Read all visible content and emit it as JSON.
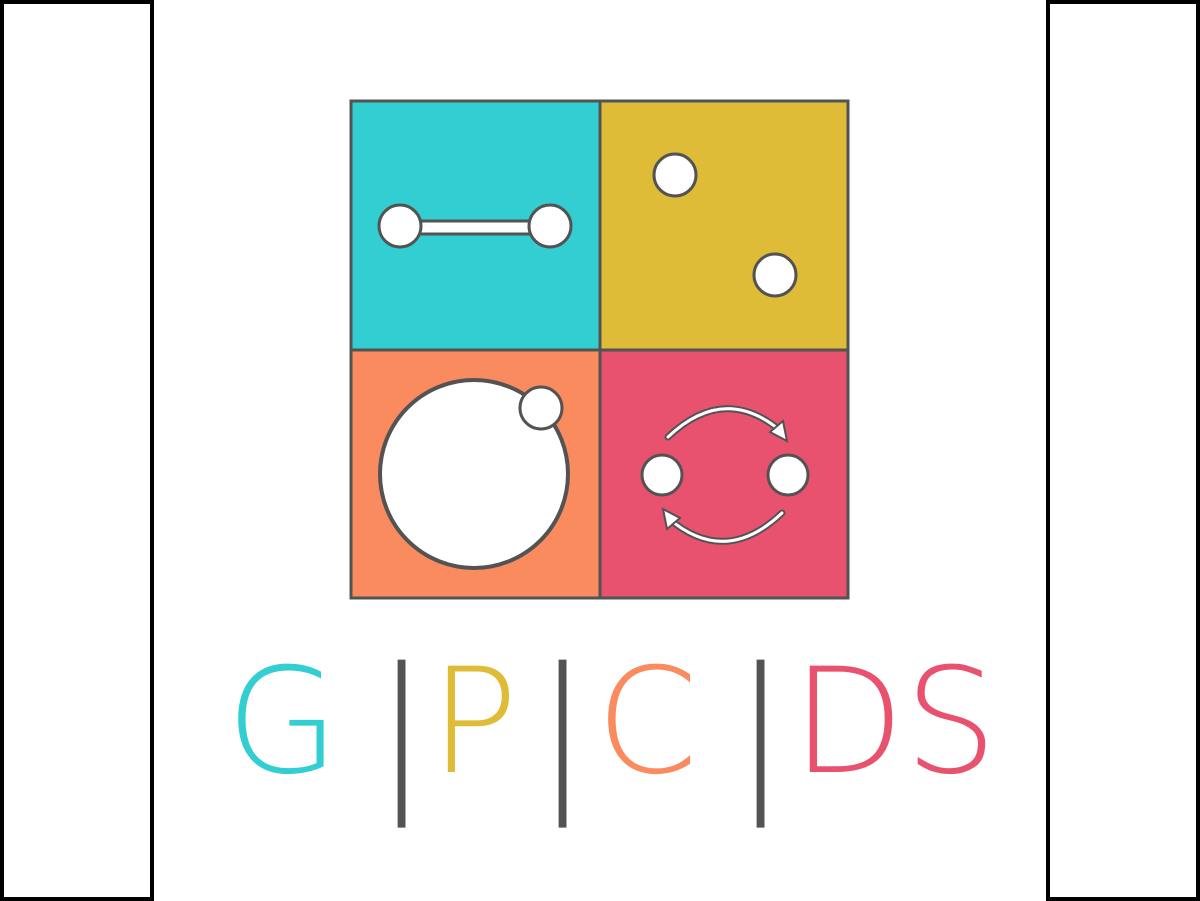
{
  "logo": {
    "colors": {
      "cyan": "#32ced1",
      "gold": "#dfbc37",
      "orange": "#f98b5e",
      "rose": "#e8526e",
      "outline": "#535353",
      "white": "#ffffff"
    },
    "quadrants": [
      {
        "name": "quadrant-cyan",
        "icon": "connected-nodes-icon"
      },
      {
        "name": "quadrant-gold",
        "icon": "scattered-dots-icon"
      },
      {
        "name": "quadrant-orange",
        "icon": "orbit-circle-icon"
      },
      {
        "name": "quadrant-rose",
        "icon": "exchange-cycle-icon"
      }
    ],
    "wordmark": {
      "g": "G",
      "p": "P",
      "c": "C",
      "ds": "DS",
      "separator": "|"
    }
  }
}
